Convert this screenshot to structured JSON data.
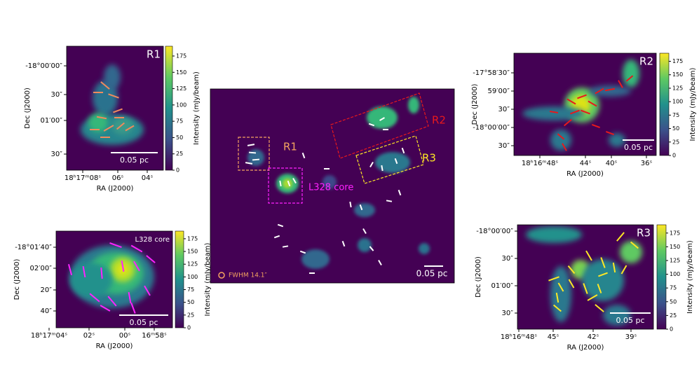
{
  "panels": [
    {
      "title": "R1",
      "xlabel": "RA (J2000)",
      "ylabel": "Dec (J2000)",
      "xticks": [
        "18ʰ17ᵐ08ˢ",
        "06ˢ",
        "04ˢ"
      ],
      "yticks": [
        "-18°00′00″",
        "30″",
        "01′00″",
        "30″"
      ],
      "scalebar": "0.05 pc",
      "colorbar_label": "Intensity (mJy/beam)",
      "colorbar_ticks": [
        0,
        25,
        50,
        75,
        100,
        125,
        150,
        175
      ]
    },
    {
      "title": "L328 core",
      "xlabel": "RA (J2000)",
      "ylabel": "Dec (J2000)",
      "xticks": [
        "18ʰ17ᵐ04ˢ",
        "02ˢ",
        "00ˢ",
        "16ᵐ58ˢ"
      ],
      "yticks": [
        "-18°01′40″",
        "02′00″",
        "20″",
        "40″"
      ],
      "scalebar": "0.05 pc",
      "colorbar_label": "Intensity (mJy/beam)",
      "colorbar_ticks": [
        0,
        25,
        50,
        75,
        100,
        125,
        150,
        175
      ]
    },
    {
      "title": "R2",
      "xlabel": "RA (J2000)",
      "ylabel": "Dec (J2000)",
      "xticks": [
        "18ʰ16ᵐ48ˢ",
        "44ˢ",
        "40ˢ",
        "36ˢ"
      ],
      "yticks": [
        "-17°58′30″",
        "59′00″",
        "30″",
        "-18°00′00″",
        "30″"
      ],
      "scalebar": "0.05 pc",
      "colorbar_label": "Intensity (mJy/beam)",
      "colorbar_ticks": [
        0,
        25,
        50,
        75,
        100,
        125,
        150,
        175
      ]
    },
    {
      "title": "R3",
      "xlabel": "RA (J2000)",
      "ylabel": "Dec (J2000)",
      "xticks": [
        "18ʰ16ᵐ48ˢ",
        "45ˢ",
        "42ˢ",
        "39ˢ"
      ],
      "yticks": [
        "-18°00′00″",
        "30″",
        "01′00″",
        "30″"
      ],
      "scalebar": "0.05 pc",
      "colorbar_label": "Intensity (mJy/beam)",
      "colorbar_ticks": [
        0,
        25,
        50,
        75,
        100,
        125,
        150,
        175
      ]
    }
  ],
  "center": {
    "labels": [
      "R1",
      "L328 core",
      "R2",
      "R3"
    ],
    "beam": "FWHM 14.1″",
    "scalebar": "0.05 pc"
  }
}
